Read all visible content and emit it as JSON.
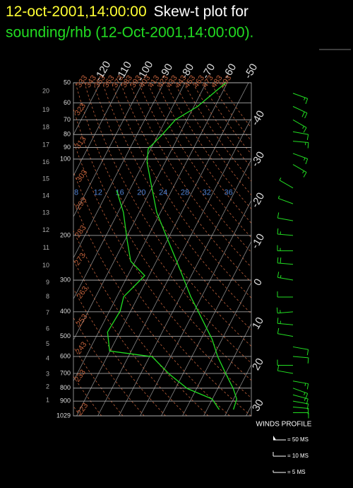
{
  "chart_data": {
    "type": "skew-t",
    "title": "12-oct-2001,14:00:00",
    "title_suffix": "Skew-t plot for",
    "subtitle": "sounding/rhb (12-Oct-2001,14:00:00).",
    "log_y": true,
    "ylim": [
      1029,
      50
    ],
    "yticks": [
      50,
      60,
      70,
      80,
      90,
      100,
      200,
      300,
      400,
      500,
      600,
      700,
      800,
      900,
      1029
    ],
    "xticks": [
      -120,
      -110,
      -100,
      -90,
      -80,
      -70,
      -60,
      -50,
      -40,
      -30,
      -20,
      -10,
      0,
      10,
      20,
      30
    ],
    "height_ticks": [
      {
        "value": 1,
        "pressure": 895
      },
      {
        "value": 2,
        "pressure": 792
      },
      {
        "value": 3,
        "pressure": 706
      },
      {
        "value": 4,
        "pressure": 613
      },
      {
        "value": 5,
        "pressure": 536
      },
      {
        "value": 6,
        "pressure": 468
      },
      {
        "value": 7,
        "pressure": 404
      },
      {
        "value": 8,
        "pressure": 349
      },
      {
        "value": 9,
        "pressure": 307
      },
      {
        "value": 10,
        "pressure": 263
      },
      {
        "value": 11,
        "pressure": 224
      },
      {
        "value": 12,
        "pressure": 191
      },
      {
        "value": 13,
        "pressure": 163
      },
      {
        "value": 14,
        "pressure": 140
      },
      {
        "value": 15,
        "pressure": 120
      },
      {
        "value": 16,
        "pressure": 103
      },
      {
        "value": 17,
        "pressure": 88
      },
      {
        "value": 18,
        "pressure": 75
      },
      {
        "value": 19,
        "pressure": 64
      },
      {
        "value": 20,
        "pressure": 54
      }
    ],
    "dry_adiabats": [
      213,
      223,
      233,
      243,
      253,
      263,
      273,
      283,
      293,
      303,
      313,
      323,
      333,
      343,
      353,
      363,
      373,
      383,
      393,
      403,
      413,
      423,
      433,
      443,
      453,
      463,
      473,
      483,
      493
    ],
    "mixing_ratio_labels": [
      8,
      12,
      16,
      20,
      24,
      28,
      32,
      36
    ],
    "mixing_ratio_pressure": 136,
    "series": [
      {
        "color": "#22dd22",
        "pressure": [
          972,
          883,
          803,
          706,
          601,
          512,
          423,
          349,
          307,
          253,
          209,
          162,
          125,
          103,
          91,
          80,
          70,
          62,
          54,
          50
        ],
        "values": [
          22.5,
          21.5,
          17.3,
          10.5,
          2.2,
          -4.8,
          -14.9,
          -25.1,
          -31.2,
          -40.4,
          -49.6,
          -61.8,
          -71.4,
          -78.5,
          -81.3,
          -78.1,
          -75.5,
          -68.3,
          -63.4,
          -60.7
        ]
      },
      {
        "color": "#22dd22",
        "pressure": [
          972,
          883,
          803,
          706,
          601,
          571,
          481,
          397,
          349,
          288,
          253,
          209,
          162,
          133
        ],
        "values": [
          15.8,
          9.9,
          -4.4,
          -16.2,
          -28.8,
          -50.2,
          -55.8,
          -55,
          -56.8,
          -52,
          -62.1,
          -68.9,
          -77.5,
          -86
        ]
      }
    ],
    "winds": {
      "title": "WINDS PROFILE",
      "pressure": [
        55,
        62,
        70,
        78,
        85,
        95,
        105,
        130,
        150,
        175,
        200,
        230,
        260,
        300,
        350,
        400,
        450,
        500,
        550,
        600,
        650,
        700,
        750,
        800,
        850,
        900,
        950,
        1000
      ],
      "direction": [
        110,
        115,
        120,
        100,
        95,
        110,
        120,
        300,
        290,
        280,
        275,
        270,
        275,
        280,
        270,
        265,
        275,
        280,
        100,
        95,
        270,
        280,
        100,
        110,
        105,
        100,
        95,
        90
      ],
      "speed": [
        18,
        20,
        15,
        12,
        15,
        18,
        15,
        5,
        8,
        10,
        15,
        18,
        20,
        15,
        12,
        15,
        18,
        10,
        12,
        10,
        12,
        10,
        15,
        18,
        15,
        12,
        10,
        10
      ],
      "legend": [
        {
          "label": "= 50 MS",
          "speed": 50
        },
        {
          "label": "= 10 MS",
          "speed": 10
        },
        {
          "label": "= 5 MS",
          "speed": 5
        }
      ]
    }
  }
}
